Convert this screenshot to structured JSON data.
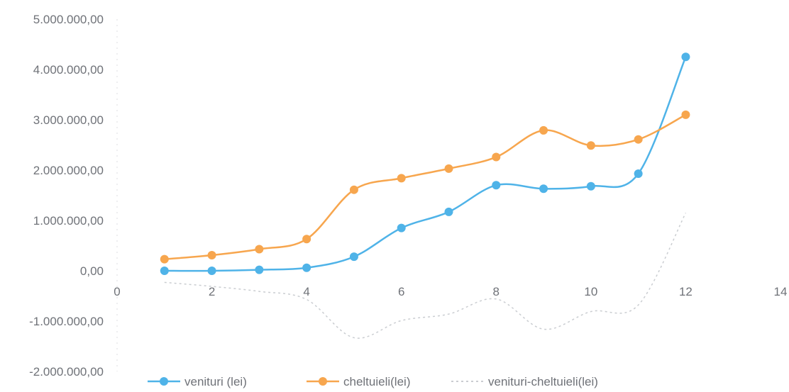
{
  "chart_data": {
    "type": "line",
    "title": "",
    "xlabel": "",
    "ylabel": "",
    "xlim": [
      0,
      14
    ],
    "ylim": [
      -2000000,
      5000000
    ],
    "x_ticks": [
      0,
      2,
      4,
      6,
      8,
      10,
      12,
      14
    ],
    "x_tick_labels": [
      "0",
      "2",
      "4",
      "6",
      "8",
      "10",
      "12",
      "14"
    ],
    "y_ticks": [
      -2000000,
      -1000000,
      0,
      1000000,
      2000000,
      3000000,
      4000000,
      5000000
    ],
    "y_tick_labels": [
      "-2.000.000,00",
      "-1.000.000,00",
      "0,00",
      "1.000.000,00",
      "2.000.000,00",
      "3.000.000,00",
      "4.000.000,00",
      "5.000.000,00"
    ],
    "grid": false,
    "legend_position": "bottom",
    "x": [
      1,
      2,
      3,
      4,
      5,
      6,
      7,
      8,
      9,
      10,
      11,
      12
    ],
    "series": [
      {
        "name": "venituri (lei)",
        "color": "#4fb3e8",
        "marker": true,
        "values": [
          0,
          0,
          20000,
          60000,
          280000,
          850000,
          1170000,
          1700000,
          1630000,
          1680000,
          1930000,
          4250000
        ]
      },
      {
        "name": "cheltuieli(lei)",
        "color": "#f7a64e",
        "marker": true,
        "values": [
          230000,
          310000,
          430000,
          630000,
          1610000,
          1840000,
          2030000,
          2260000,
          2790000,
          2490000,
          2610000,
          3100000
        ]
      },
      {
        "name": "venituri-cheltuieli(lei)",
        "color": "#b8bcc2",
        "marker": false,
        "values": [
          -230000,
          -310000,
          -410000,
          -570000,
          -1330000,
          -990000,
          -860000,
          -560000,
          -1160000,
          -810000,
          -680000,
          1150000
        ]
      }
    ]
  }
}
